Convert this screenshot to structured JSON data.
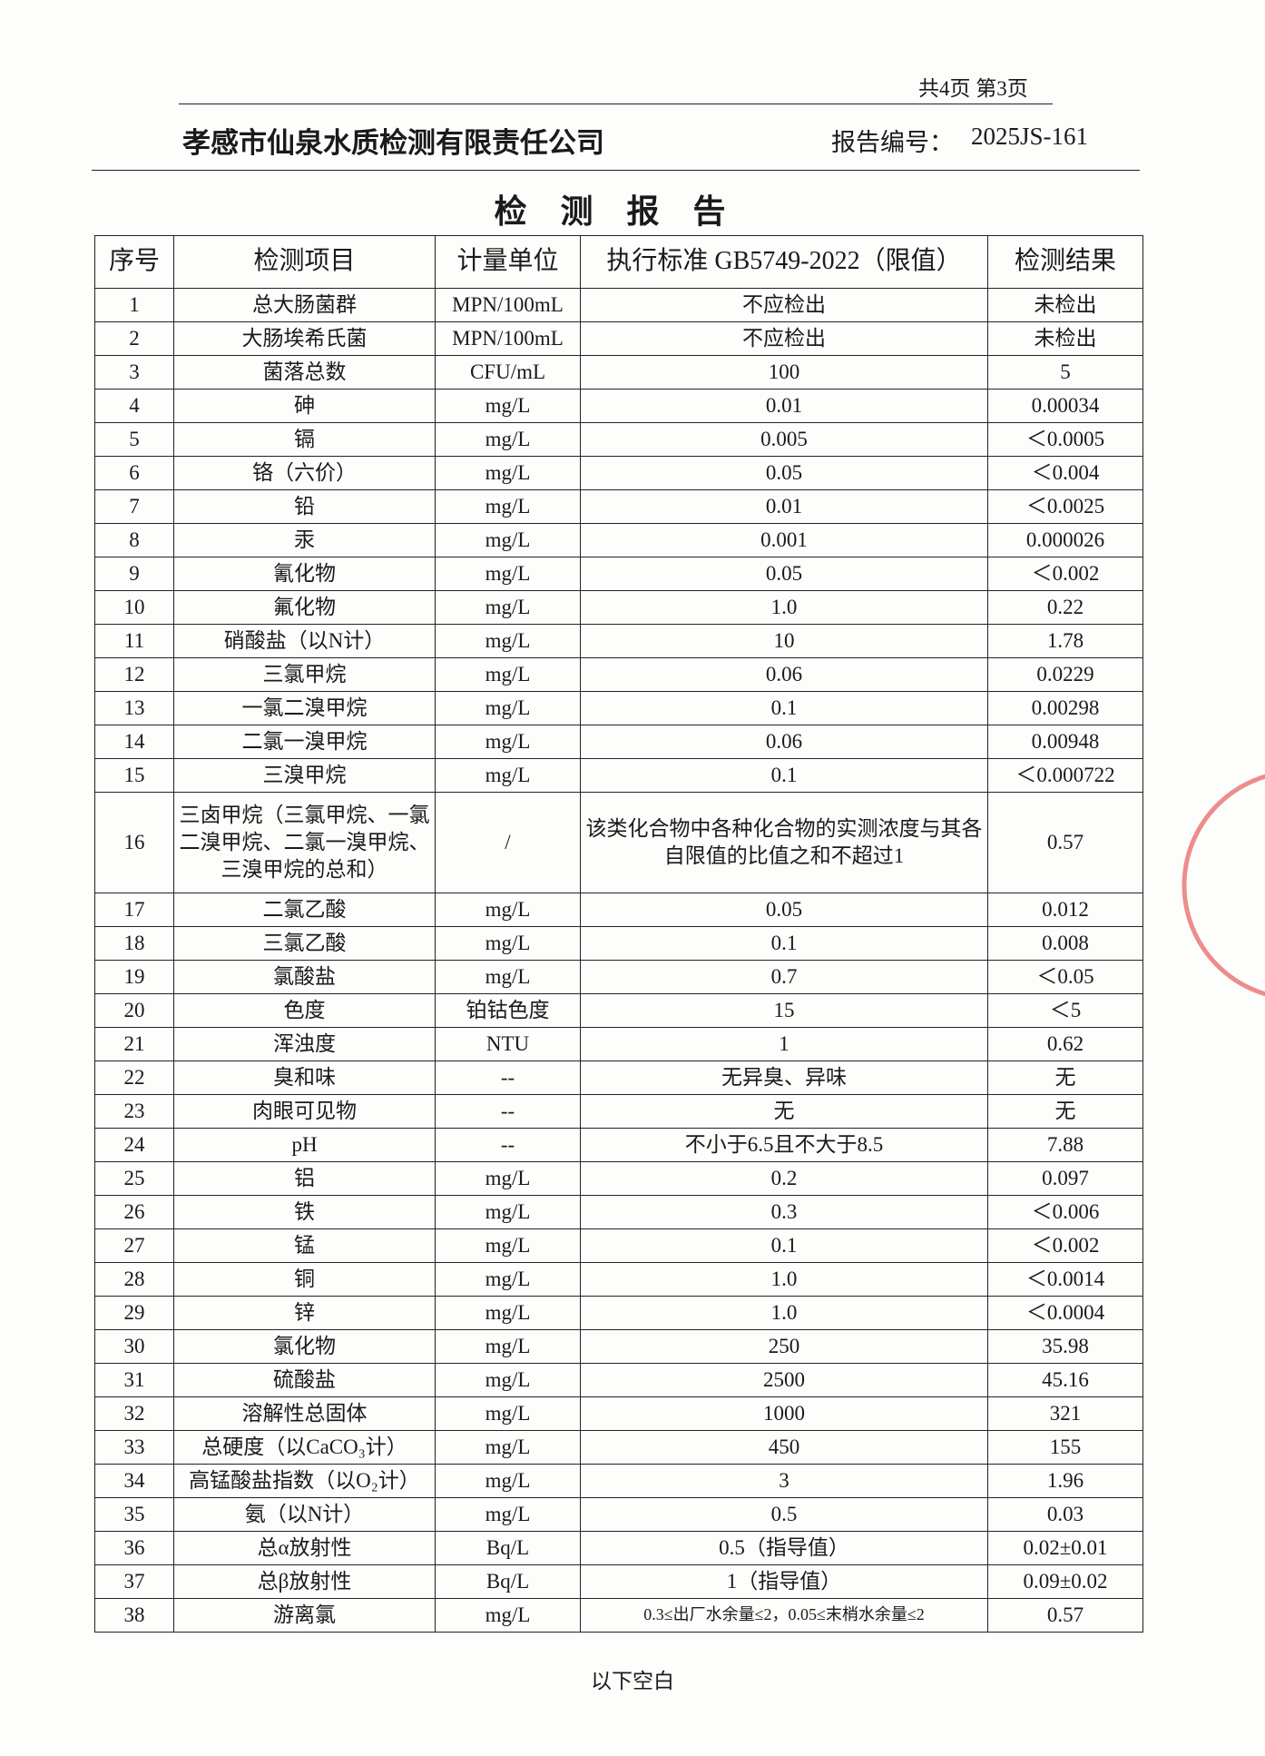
{
  "page_info": "共4页 第3页",
  "header": {
    "company": "孝感市仙泉水质检测有限责任公司",
    "report_no_label": "报告编号：",
    "report_no": "2025JS-161"
  },
  "title": "检 测 报 告",
  "table": {
    "columns": [
      "序号",
      "检测项目",
      "计量单位",
      "执行标准 GB5749-2022（限值）",
      "检测结果"
    ],
    "rows": [
      [
        "1",
        "总大肠菌群",
        "MPN/100mL",
        "不应检出",
        "未检出"
      ],
      [
        "2",
        "大肠埃希氏菌",
        "MPN/100mL",
        "不应检出",
        "未检出"
      ],
      [
        "3",
        "菌落总数",
        "CFU/mL",
        "100",
        "5"
      ],
      [
        "4",
        "砷",
        "mg/L",
        "0.01",
        "0.00034"
      ],
      [
        "5",
        "镉",
        "mg/L",
        "0.005",
        "＜0.0005"
      ],
      [
        "6",
        "铬（六价）",
        "mg/L",
        "0.05",
        "＜0.004"
      ],
      [
        "7",
        "铅",
        "mg/L",
        "0.01",
        "＜0.0025"
      ],
      [
        "8",
        "汞",
        "mg/L",
        "0.001",
        "0.000026"
      ],
      [
        "9",
        "氰化物",
        "mg/L",
        "0.05",
        "＜0.002"
      ],
      [
        "10",
        "氟化物",
        "mg/L",
        "1.0",
        "0.22"
      ],
      [
        "11",
        "硝酸盐（以N计）",
        "mg/L",
        "10",
        "1.78"
      ],
      [
        "12",
        "三氯甲烷",
        "mg/L",
        "0.06",
        "0.0229"
      ],
      [
        "13",
        "一氯二溴甲烷",
        "mg/L",
        "0.1",
        "0.00298"
      ],
      [
        "14",
        "二氯一溴甲烷",
        "mg/L",
        "0.06",
        "0.00948"
      ],
      [
        "15",
        "三溴甲烷",
        "mg/L",
        "0.1",
        "＜0.000722"
      ],
      [
        "16",
        "三卤甲烷（三氯甲烷、一氯二溴甲烷、二氯一溴甲烷、三溴甲烷的总和）",
        "/",
        "该类化合物中各种化合物的实测浓度与其各自限值的比值之和不超过1",
        "0.57"
      ],
      [
        "17",
        "二氯乙酸",
        "mg/L",
        "0.05",
        "0.012"
      ],
      [
        "18",
        "三氯乙酸",
        "mg/L",
        "0.1",
        "0.008"
      ],
      [
        "19",
        "氯酸盐",
        "mg/L",
        "0.7",
        "＜0.05"
      ],
      [
        "20",
        "色度",
        "铂钴色度",
        "15",
        "＜5"
      ],
      [
        "21",
        "浑浊度",
        "NTU",
        "1",
        "0.62"
      ],
      [
        "22",
        "臭和味",
        "--",
        "无异臭、异味",
        "无"
      ],
      [
        "23",
        "肉眼可见物",
        "--",
        "无",
        "无"
      ],
      [
        "24",
        "pH",
        "--",
        "不小于6.5且不大于8.5",
        "7.88"
      ],
      [
        "25",
        "铝",
        "mg/L",
        "0.2",
        "0.097"
      ],
      [
        "26",
        "铁",
        "mg/L",
        "0.3",
        "＜0.006"
      ],
      [
        "27",
        "锰",
        "mg/L",
        "0.1",
        "＜0.002"
      ],
      [
        "28",
        "铜",
        "mg/L",
        "1.0",
        "＜0.0014"
      ],
      [
        "29",
        "锌",
        "mg/L",
        "1.0",
        "＜0.0004"
      ],
      [
        "30",
        "氯化物",
        "mg/L",
        "250",
        "35.98"
      ],
      [
        "31",
        "硫酸盐",
        "mg/L",
        "2500",
        "45.16"
      ],
      [
        "32",
        "溶解性总固体",
        "mg/L",
        "1000",
        "321"
      ],
      [
        "33",
        "总硬度（以CaCO₃计）",
        "mg/L",
        "450",
        "155"
      ],
      [
        "34",
        "高锰酸盐指数（以O₂计）",
        "mg/L",
        "3",
        "1.96"
      ],
      [
        "35",
        "氨（以N计）",
        "mg/L",
        "0.5",
        "0.03"
      ],
      [
        "36",
        "总α放射性",
        "Bq/L",
        "0.5（指导值）",
        "0.02±0.01"
      ],
      [
        "37",
        "总β放射性",
        "Bq/L",
        "1（指导值）",
        "0.09±0.02"
      ],
      [
        "38",
        "游离氯",
        "mg/L",
        "0.3≤出厂水余量≤2，0.05≤末梢水余量≤2",
        "0.57"
      ]
    ]
  },
  "footer": "以下空白"
}
